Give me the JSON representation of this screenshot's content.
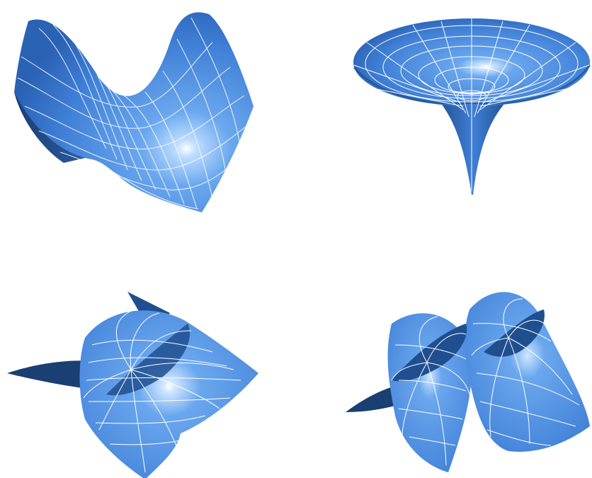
{
  "surfaces": [
    {
      "id": "saddle",
      "kind": "saddle-surface"
    },
    {
      "id": "funnel",
      "kind": "funnel-surface"
    },
    {
      "id": "twisted",
      "kind": "twisted-surface"
    },
    {
      "id": "double-twisted",
      "kind": "double-twisted-surface"
    }
  ],
  "colors": {
    "surface_light": "#6aa7ee",
    "surface_mid": "#3f7fd6",
    "surface_dark": "#1f4f8f",
    "surface_back": "#1a3f72",
    "highlight": "#ffffff",
    "mesh": "#ffffff"
  }
}
